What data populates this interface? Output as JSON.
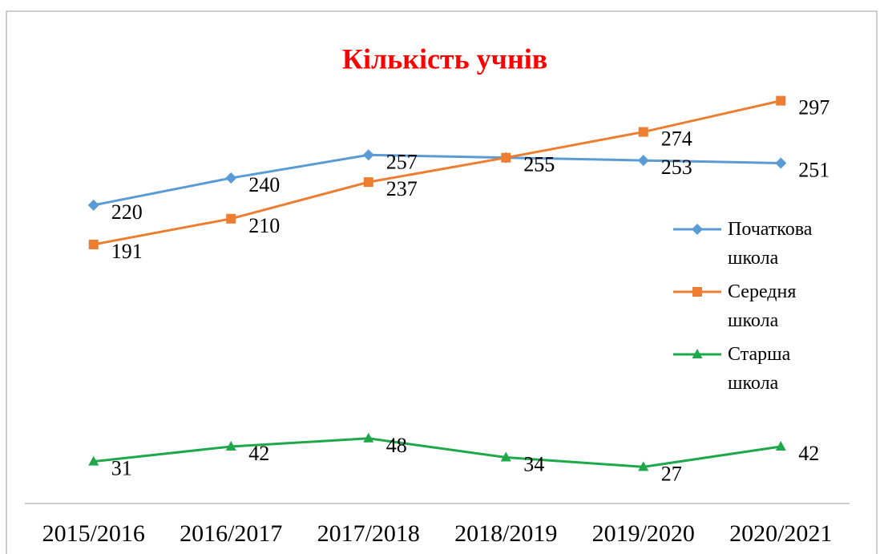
{
  "chart_data": {
    "type": "line",
    "title": "Кількість учнів",
    "categories": [
      "2015/2016",
      "2016/2017",
      "2017/2018",
      "2018/2019",
      "2019/2020",
      "2020/2021"
    ],
    "series": [
      {
        "name": "Початкова школа",
        "color": "#5b9bd5",
        "marker": "diamond",
        "values": [
          220,
          240,
          257,
          255,
          253,
          251
        ]
      },
      {
        "name": "Середня школа",
        "color": "#ed7d31",
        "marker": "square",
        "values": [
          191,
          210,
          237,
          255,
          274,
          297
        ]
      },
      {
        "name": "Старша школа",
        "color": "#1fa84a",
        "marker": "triangle",
        "values": [
          31,
          42,
          48,
          34,
          27,
          42
        ]
      }
    ],
    "ylim": [
      0,
      350
    ],
    "legend": "right",
    "title_color": "#ff0000"
  }
}
